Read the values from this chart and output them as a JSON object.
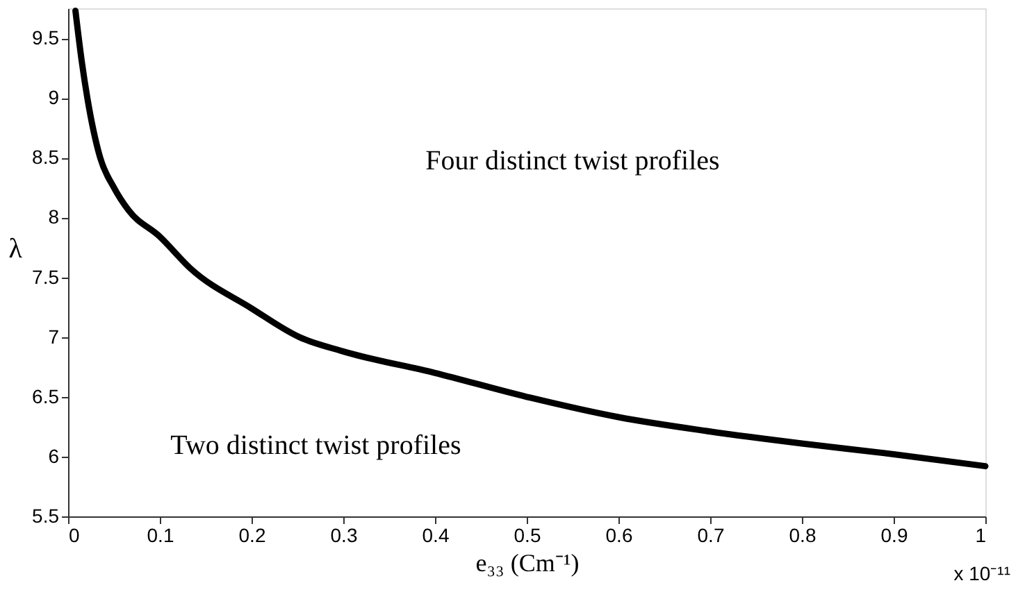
{
  "chart_data": {
    "type": "line",
    "xlabel": "e₃₃ (Cm⁻¹)",
    "ylabel": "λ",
    "x": [
      0.008,
      0.015,
      0.021,
      0.035,
      0.05,
      0.066,
      0.1,
      0.134,
      0.2,
      0.252,
      0.3,
      0.4,
      0.5,
      0.6,
      0.7,
      0.8,
      0.9,
      1.0
    ],
    "series": [
      {
        "color": "#000000",
        "values": [
          9.73,
          9.3,
          9.0,
          8.5,
          8.25,
          8.06,
          7.84,
          7.57,
          7.24,
          7.0,
          6.88,
          6.7,
          6.5,
          6.33,
          6.21,
          6.11,
          6.02,
          5.92
        ]
      }
    ],
    "xlim": [
      0,
      1
    ],
    "xticks": [
      0,
      0.1,
      0.2,
      0.3,
      0.4,
      0.5,
      0.6,
      0.7,
      0.8,
      0.9,
      1
    ],
    "ylim": [
      5.5,
      9.75
    ],
    "yticks": [
      5.5,
      6,
      6.5,
      7,
      7.5,
      8,
      8.5,
      9,
      9.5
    ],
    "grid": false,
    "marker": "none",
    "line_style": "solid",
    "annotations": [
      "Four distinct twist profiles",
      "Two distinct twist profiles",
      "x 10⁻¹¹"
    ]
  }
}
